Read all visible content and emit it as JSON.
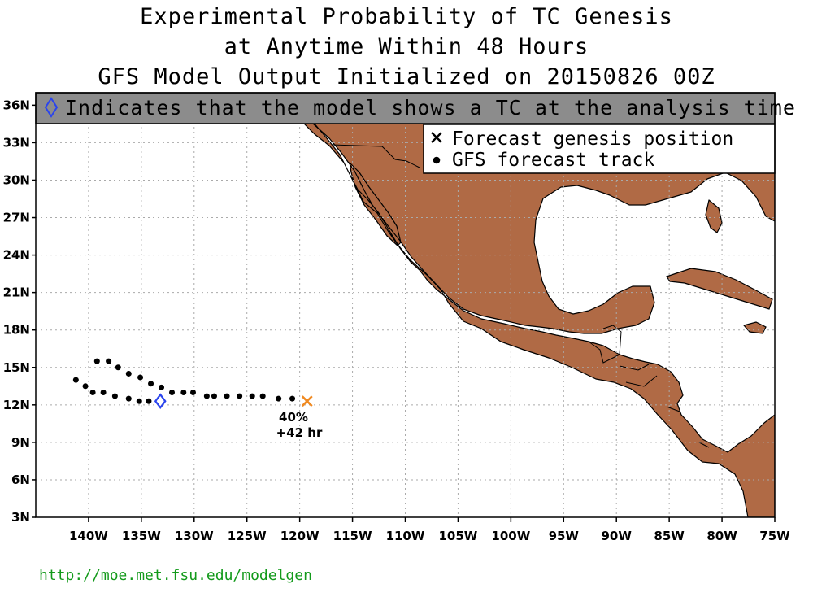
{
  "titles": [
    "Experimental Probability of TC Genesis",
    "at Anytime Within 48 Hours",
    "GFS Model Output Initialized on 20150826 00Z"
  ],
  "banner": {
    "text": "Indicates that the model shows a TC at the analysis time",
    "icon": "diamond-icon",
    "background": "#8c8c8c"
  },
  "legend": [
    {
      "symbol": "x-mark-icon",
      "label": "Forecast genesis position"
    },
    {
      "symbol": "dot-icon",
      "label": "GFS forecast track"
    }
  ],
  "chart_data": {
    "type": "scatter",
    "projection": "lat-lon",
    "xlim": [
      -145,
      -75
    ],
    "ylim": [
      3,
      37
    ],
    "x_tick_values": [
      -140,
      -135,
      -130,
      -125,
      -120,
      -115,
      -110,
      -105,
      -100,
      -95,
      -90,
      -85,
      -80,
      -75
    ],
    "x_tick_labels": [
      "140W",
      "135W",
      "130W",
      "125W",
      "120W",
      "115W",
      "110W",
      "105W",
      "100W",
      "95W",
      "90W",
      "85W",
      "80W",
      "75W"
    ],
    "y_tick_values": [
      3,
      6,
      9,
      12,
      15,
      18,
      21,
      24,
      27,
      30,
      33,
      36
    ],
    "y_tick_labels": [
      "3N",
      "6N",
      "9N",
      "12N",
      "15N",
      "18N",
      "21N",
      "24N",
      "27N",
      "30N",
      "33N",
      "36N"
    ],
    "grid": true,
    "land_color": "#b06a45",
    "track_points": [
      {
        "lon": -141.2,
        "lat": 14.0
      },
      {
        "lon": -140.3,
        "lat": 13.5
      },
      {
        "lon": -139.6,
        "lat": 13.0
      },
      {
        "lon": -138.6,
        "lat": 13.0
      },
      {
        "lon": -137.5,
        "lat": 12.7
      },
      {
        "lon": -136.2,
        "lat": 12.5
      },
      {
        "lon": -135.2,
        "lat": 12.3
      },
      {
        "lon": -134.3,
        "lat": 12.3
      },
      {
        "lon": -139.2,
        "lat": 15.5
      },
      {
        "lon": -138.1,
        "lat": 15.5
      },
      {
        "lon": -137.2,
        "lat": 15.0
      },
      {
        "lon": -136.2,
        "lat": 14.5
      },
      {
        "lon": -135.1,
        "lat": 14.2
      },
      {
        "lon": -134.1,
        "lat": 13.7
      },
      {
        "lon": -133.1,
        "lat": 13.4
      },
      {
        "lon": -132.1,
        "lat": 13.0
      },
      {
        "lon": -131.0,
        "lat": 13.0
      },
      {
        "lon": -130.1,
        "lat": 13.0
      },
      {
        "lon": -128.8,
        "lat": 12.7
      },
      {
        "lon": -128.1,
        "lat": 12.7
      },
      {
        "lon": -126.9,
        "lat": 12.7
      },
      {
        "lon": -125.7,
        "lat": 12.7
      },
      {
        "lon": -124.5,
        "lat": 12.7
      },
      {
        "lon": -123.5,
        "lat": 12.7
      },
      {
        "lon": -122.0,
        "lat": 12.5
      },
      {
        "lon": -120.7,
        "lat": 12.5
      }
    ],
    "analysis_diamond": {
      "lon": -133.2,
      "lat": 12.3,
      "color": "#2a44ee"
    },
    "genesis_position": {
      "lon": -119.3,
      "lat": 12.3,
      "color": "#f08a22"
    },
    "genesis_probability": "40%",
    "genesis_lead_time": "+42 hr"
  },
  "footer_url": "http://moe.met.fsu.edu/modelgen",
  "footer_color": "#139a1b"
}
